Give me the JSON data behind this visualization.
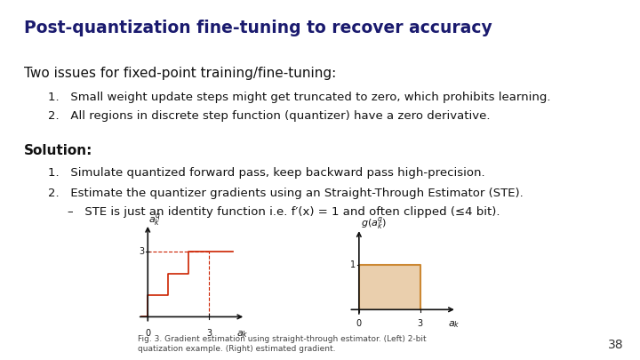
{
  "title": "Post-quantization fine-tuning to recover accuracy",
  "title_color": "#1a1a6e",
  "title_fontsize": 13.5,
  "bg_color": "#ffffff",
  "subtitle": "Two issues for fixed-point training/fine-tuning:",
  "subtitle_fontsize": 11,
  "issues": [
    "Small weight update steps might get truncated to zero, which prohibits learning.",
    "All regions in discrete step function (quantizer) have a zero derivative."
  ],
  "issue_fontsize": 9.5,
  "solution_header": "Solution:",
  "solution_fontsize": 11,
  "solution_items": [
    "Simulate quantized forward pass, keep backward pass high-precision.",
    "Estimate the quantizer gradients using an Straight-Through Estimator (STE)."
  ],
  "solution_item_fontsize": 9.5,
  "sub_bullet": "STE is just an identity function i.e. f′(x) = 1 and often clipped (≤4 bit).",
  "sub_bullet_fontsize": 9.5,
  "fig_caption": "Fig. 3. Gradient estimation using straight-through estimator. (Left) 2-bit\nquatization example. (Right) estimated gradient.",
  "fig_caption_fontsize": 6.5,
  "page_num": "38",
  "page_num_fontsize": 10,
  "left_plot": {
    "step_color": "#cc2200",
    "dashed_color": "#cc2200",
    "axis_color": "#111111"
  },
  "right_plot": {
    "rect_color": "#cc8833",
    "axis_color": "#111111"
  }
}
